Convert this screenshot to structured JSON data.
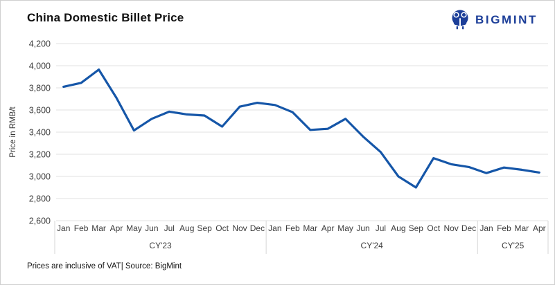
{
  "header": {
    "title": "China Domestic Billet Price"
  },
  "logo": {
    "text": "BIGMINT"
  },
  "footer": {
    "note": "Prices are inclusive of VAT| Source: BigMint"
  },
  "colors": {
    "line": "#1556a8",
    "logo": "#1d3f99",
    "grid": "#e2e2e2",
    "separator": "#d6d6d6",
    "axis_text": "#3c3c3c"
  },
  "chart_data": {
    "type": "line",
    "title": "China Domestic Billet Price",
    "ylabel": "Price in RMB/t",
    "xlabel": "",
    "ylim": [
      2600,
      4200
    ],
    "yticks": [
      2600,
      2800,
      3000,
      3200,
      3400,
      3600,
      3800,
      4000,
      4200
    ],
    "grid": "horizontal",
    "legend": "none",
    "groups": [
      {
        "label": "CY'23",
        "months": [
          "Jan",
          "Feb",
          "Mar",
          "Apr",
          "May",
          "Jun",
          "Jul",
          "Aug",
          "Sep",
          "Oct",
          "Nov",
          "Dec"
        ]
      },
      {
        "label": "CY'24",
        "months": [
          "Jan",
          "Feb",
          "Mar",
          "Apr",
          "May",
          "Jun",
          "Jul",
          "Aug",
          "Sep",
          "Oct",
          "Nov",
          "Dec"
        ]
      },
      {
        "label": "CY'25",
        "months": [
          "Jan",
          "Feb",
          "Mar",
          "Apr"
        ]
      }
    ],
    "series": [
      {
        "name": "China Domestic Billet Price (RMB/t)",
        "values": [
          3810,
          3845,
          3965,
          3710,
          3415,
          3520,
          3585,
          3560,
          3550,
          3450,
          3630,
          3665,
          3645,
          3580,
          3420,
          3430,
          3520,
          3360,
          3220,
          3000,
          2900,
          3165,
          3110,
          3085,
          3030,
          3080,
          3060,
          3035
        ]
      }
    ]
  }
}
